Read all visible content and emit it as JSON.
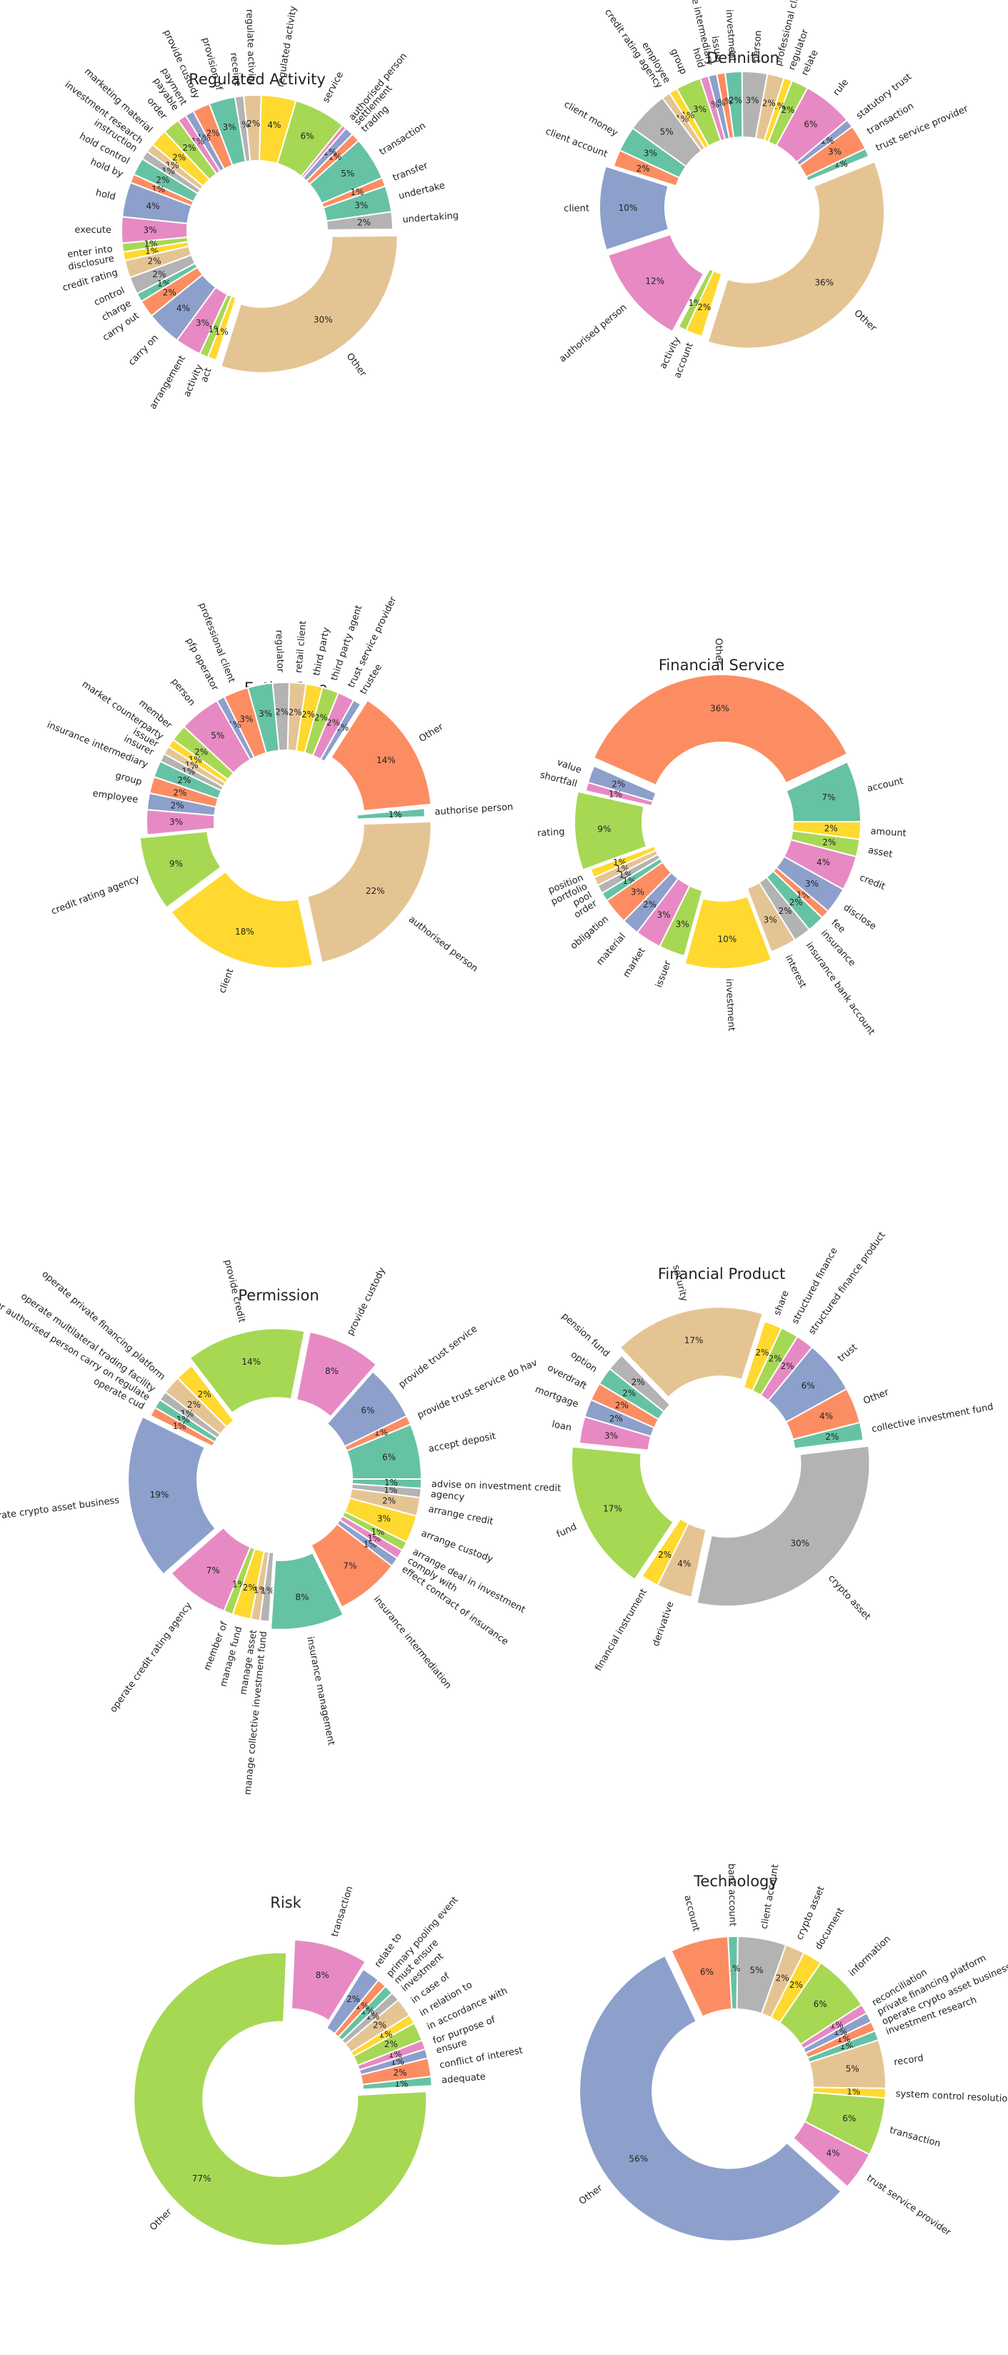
{
  "palette": [
    "#66c2a5",
    "#fc8d62",
    "#8da0cb",
    "#e78ac3",
    "#a6d854",
    "#ffd92f",
    "#e5c494",
    "#b3b3b3"
  ],
  "chart_data": [
    {
      "type": "pie",
      "title": "Regulated Activity",
      "slices": [
        {
          "label": "transaction",
          "value": 5
        },
        {
          "label": "trading",
          "value": 1
        },
        {
          "label": "settlement",
          "value": 1
        },
        {
          "label": "authorised person",
          "value": 0.5
        },
        {
          "label": "service",
          "value": 6
        },
        {
          "label": "regulated activity",
          "value": 4
        },
        {
          "label": "regulate activity",
          "value": 2
        },
        {
          "label": "receive",
          "value": 1
        },
        {
          "label": "provision of",
          "value": 3
        },
        {
          "label": "provide custody",
          "value": 2
        },
        {
          "label": "payment",
          "value": 1
        },
        {
          "label": "payable",
          "value": 1
        },
        {
          "label": "order",
          "value": 2
        },
        {
          "label": "marketing material",
          "value": 2
        },
        {
          "label": "investment research",
          "value": 1
        },
        {
          "label": "instruction",
          "value": 1
        },
        {
          "label": "hold control",
          "value": 2
        },
        {
          "label": "hold by",
          "value": 1
        },
        {
          "label": "hold",
          "value": 4
        },
        {
          "label": "execute",
          "value": 3
        },
        {
          "label": "enter into",
          "value": 1
        },
        {
          "label": "disclosure",
          "value": 1
        },
        {
          "label": "credit rating",
          "value": 2
        },
        {
          "label": "control",
          "value": 2
        },
        {
          "label": "charge",
          "value": 1
        },
        {
          "label": "carry out",
          "value": 2
        },
        {
          "label": "carry on",
          "value": 4
        },
        {
          "label": "arrangement",
          "value": 3
        },
        {
          "label": "activity",
          "value": 1
        },
        {
          "label": "act",
          "value": 1
        },
        {
          "label": "Other",
          "value": 29
        },
        {
          "label": "undertaking",
          "value": 2
        },
        {
          "label": "undertake",
          "value": 3
        },
        {
          "label": "transfer",
          "value": 1
        }
      ]
    },
    {
      "type": "pie",
      "title": "Definition",
      "slices": [
        {
          "label": "trust service provider",
          "value": 1
        },
        {
          "label": "transaction",
          "value": 3
        },
        {
          "label": "statutory trust",
          "value": 1
        },
        {
          "label": "rule",
          "value": 6
        },
        {
          "label": "relate",
          "value": 2
        },
        {
          "label": "regulator",
          "value": 1
        },
        {
          "label": "professional client",
          "value": 2
        },
        {
          "label": "person",
          "value": 3
        },
        {
          "label": "investment",
          "value": 2
        },
        {
          "label": "issuer",
          "value": 1
        },
        {
          "label": "insurance intermediary",
          "value": 1
        },
        {
          "label": "hold",
          "value": 1
        },
        {
          "label": "group",
          "value": 3
        },
        {
          "label": "employee",
          "value": 1
        },
        {
          "label": "credit rating agency",
          "value": 1
        },
        {
          "label": "",
          "value": 5
        },
        {
          "label": "client money",
          "value": 3
        },
        {
          "label": "client account",
          "value": 2
        },
        {
          "label": "client",
          "value": 10
        },
        {
          "label": "authorised person",
          "value": 12
        },
        {
          "label": "activity",
          "value": 1
        },
        {
          "label": "account",
          "value": 2
        },
        {
          "label": "Other",
          "value": 36
        }
      ]
    },
    {
      "type": "pie",
      "title": "Entity Type",
      "slices": [
        {
          "label": "authorise person",
          "value": 1
        },
        {
          "label": "Other",
          "value": 15
        },
        {
          "label": "trustee",
          "value": 1
        },
        {
          "label": "trust service provider",
          "value": 2
        },
        {
          "label": "third party agent",
          "value": 2
        },
        {
          "label": "third party",
          "value": 2
        },
        {
          "label": "retail client",
          "value": 2
        },
        {
          "label": "regulator",
          "value": 2
        },
        {
          "label": "",
          "value": 3
        },
        {
          "label": "professional client",
          "value": 3
        },
        {
          "label": "pfp operator",
          "value": 1
        },
        {
          "label": "person",
          "value": 5
        },
        {
          "label": "member",
          "value": 2
        },
        {
          "label": "market counterparty",
          "value": 1
        },
        {
          "label": "issuer",
          "value": 1
        },
        {
          "label": "insurer",
          "value": 1
        },
        {
          "label": "insurance intermediary",
          "value": 2
        },
        {
          "label": "group",
          "value": 2
        },
        {
          "label": "employee",
          "value": 2
        },
        {
          "label": "",
          "value": 3
        },
        {
          "label": "credit rating agency",
          "value": 9
        },
        {
          "label": "client",
          "value": 19
        },
        {
          "label": "authorised person",
          "value": 23
        }
      ]
    },
    {
      "type": "pie",
      "title": "Financial Service",
      "slices": [
        {
          "label": "account",
          "value": 7
        },
        {
          "label": "Other",
          "value": 36
        },
        {
          "label": "value",
          "value": 2
        },
        {
          "label": "shortfall",
          "value": 1
        },
        {
          "label": "rating",
          "value": 9
        },
        {
          "label": "position",
          "value": 1
        },
        {
          "label": "portfolio",
          "value": 1
        },
        {
          "label": "pool",
          "value": 1
        },
        {
          "label": "order",
          "value": 1
        },
        {
          "label": "obligation",
          "value": 3
        },
        {
          "label": "material",
          "value": 2
        },
        {
          "label": "market",
          "value": 3
        },
        {
          "label": "issuer",
          "value": 3
        },
        {
          "label": "investment",
          "value": 10
        },
        {
          "label": "interest",
          "value": 3
        },
        {
          "label": "insurance bank account",
          "value": 2
        },
        {
          "label": "insurance",
          "value": 2
        },
        {
          "label": "fee",
          "value": 1
        },
        {
          "label": "disclose",
          "value": 3
        },
        {
          "label": "credit",
          "value": 4
        },
        {
          "label": "asset",
          "value": 2
        },
        {
          "label": "amount",
          "value": 2
        }
      ]
    },
    {
      "type": "pie",
      "title": "Permission",
      "slices": [
        {
          "label": "accept deposit",
          "value": 6
        },
        {
          "label": "provide trust service do hav",
          "value": 1
        },
        {
          "label": "provide trust service",
          "value": 6
        },
        {
          "label": "provide custody",
          "value": 8
        },
        {
          "label": "provide credit",
          "value": 13
        },
        {
          "label": "",
          "value": 2
        },
        {
          "label": "operate private financing platform",
          "value": 2
        },
        {
          "label": "operate multilateral trading facility",
          "value": 1
        },
        {
          "label": "operate mtf operator authorised person carry on regulate",
          "value": 1
        },
        {
          "label": "operate cud",
          "value": 1
        },
        {
          "label": "operate crypto asset business",
          "value": 18
        },
        {
          "label": "operate credit rating agency",
          "value": 7
        },
        {
          "label": "member of",
          "value": 1
        },
        {
          "label": "manage fund",
          "value": 2
        },
        {
          "label": "manage asset",
          "value": 1
        },
        {
          "label": "manage collective investment fund",
          "value": 1
        },
        {
          "label": "insurance management",
          "value": 8
        },
        {
          "label": "insurance intermediation",
          "value": 7
        },
        {
          "label": "effect contract of insurance",
          "value": 1
        },
        {
          "label": "comply with",
          "value": 1
        },
        {
          "label": "arrange deal in investment",
          "value": 1
        },
        {
          "label": "arrange custody",
          "value": 3
        },
        {
          "label": "arrange credit",
          "value": 2
        },
        {
          "label": "agency",
          "value": 1
        },
        {
          "label": "advise on investment credit",
          "value": 1
        }
      ]
    },
    {
      "type": "pie",
      "title": "Financial Product",
      "slices": [
        {
          "label": "collective investment fund",
          "value": 2
        },
        {
          "label": "Other",
          "value": 4
        },
        {
          "label": "trust",
          "value": 6
        },
        {
          "label": "structured finance product",
          "value": 2
        },
        {
          "label": "structured finance",
          "value": 2
        },
        {
          "label": "share",
          "value": 2
        },
        {
          "label": "security",
          "value": 17
        },
        {
          "label": "pension fund",
          "value": 2
        },
        {
          "label": "option",
          "value": 2
        },
        {
          "label": "overdraft",
          "value": 2
        },
        {
          "label": "mortgage",
          "value": 2
        },
        {
          "label": "loan",
          "value": 3
        },
        {
          "label": "fund",
          "value": 17
        },
        {
          "label": "financial instrument",
          "value": 2
        },
        {
          "label": "derivative",
          "value": 4
        },
        {
          "label": "crypto asset",
          "value": 30
        }
      ]
    },
    {
      "type": "pie",
      "title": "Risk",
      "slices": [
        {
          "label": "adequate",
          "value": 1
        },
        {
          "label": "conflict of interest",
          "value": 2
        },
        {
          "label": "ensure",
          "value": 1
        },
        {
          "label": "for purpose of",
          "value": 1
        },
        {
          "label": "in accordance with",
          "value": 2
        },
        {
          "label": "in relation to",
          "value": 1
        },
        {
          "label": "in case of",
          "value": 2
        },
        {
          "label": "investment",
          "value": 1
        },
        {
          "label": "must ensure",
          "value": 1
        },
        {
          "label": "primary pooling event",
          "value": 1
        },
        {
          "label": "relate to",
          "value": 2
        },
        {
          "label": "transaction",
          "value": 8
        },
        {
          "label": "Other",
          "value": 75
        }
      ]
    },
    {
      "type": "pie",
      "title": "Technology",
      "slices": [
        {
          "label": "investment research",
          "value": 1
        },
        {
          "label": "operate crypto asset business",
          "value": 1
        },
        {
          "label": "private financing platform",
          "value": 1
        },
        {
          "label": "reconciliation",
          "value": 1
        },
        {
          "label": "information",
          "value": 6
        },
        {
          "label": "document",
          "value": 2
        },
        {
          "label": "crypto asset",
          "value": 2
        },
        {
          "label": "client account",
          "value": 5
        },
        {
          "label": "bank account",
          "value": 1
        },
        {
          "label": "account",
          "value": 6
        },
        {
          "label": "Other",
          "value": 54
        },
        {
          "label": "trust service provider",
          "value": 4
        },
        {
          "label": "transaction",
          "value": 6
        },
        {
          "label": "system control resolution pack",
          "value": 1
        },
        {
          "label": "record",
          "value": 5
        }
      ]
    }
  ]
}
